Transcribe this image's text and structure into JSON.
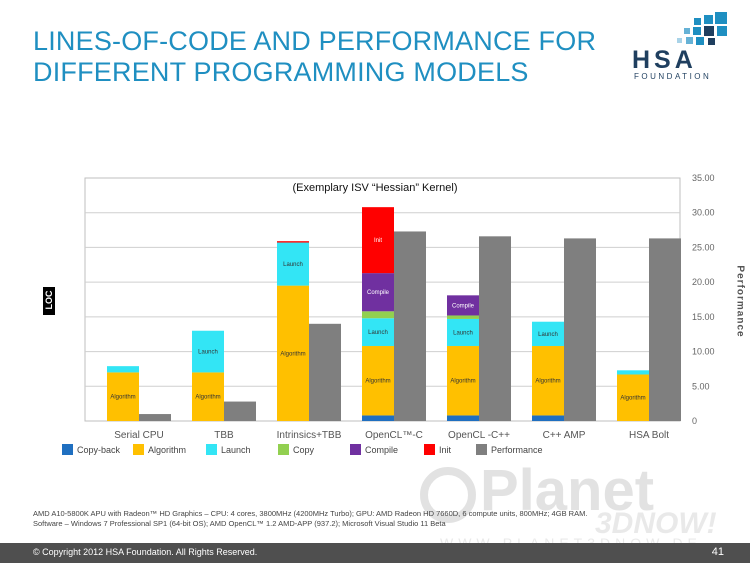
{
  "title": {
    "line1": "LINES-OF-CODE AND PERFORMANCE FOR",
    "line2": "DIFFERENT PROGRAMMING MODELS"
  },
  "logo": {
    "text": "HSA",
    "sub": "FOUNDATION"
  },
  "loc_label": "LOC",
  "performance_label": "Performance",
  "footnote": {
    "line1": "AMD A10-5800K APU with Radeon™ HD Graphics – CPU: 4 cores, 3800MHz (4200MHz Turbo); GPU: AMD Radeon HD 7660D, 6 compute units, 800MHz; 4GB RAM.",
    "line2": "Software – Windows 7 Professional SP1 (64-bit OS); AMD OpenCL™ 1.2 AMD-APP (937.2); Microsoft Visual Studio 11 Beta"
  },
  "footer": {
    "copyright": "© Copyright 2012 HSA Foundation. All Rights Reserved.",
    "page": "41"
  },
  "watermark": {
    "text": "Planet",
    "sub": "3DNOW!",
    "url": "WWW.PLANET3DNOW.DE"
  },
  "colors": {
    "copyback": "#1f6fc0",
    "algorithm": "#ffc000",
    "launch": "#33e5f5",
    "copy": "#92d050",
    "compile": "#7030a0",
    "init": "#ff0000",
    "performance": "#7f7f7f"
  },
  "chart_data": {
    "type": "bar",
    "title": "(Exemplary ISV “Hessian” Kernel)",
    "categories": [
      "Serial CPU",
      "TBB",
      "Intrinsics+TBB",
      "OpenCL™-C",
      "OpenCL -C++",
      "C++ AMP",
      "HSA Bolt"
    ],
    "loc_ylim": [
      0,
      35
    ],
    "perf_ylim": [
      0,
      35
    ],
    "perf_ticks": [
      "35.00",
      "30.00",
      "25.00",
      "20.00",
      "15.00",
      "10.00",
      "5.00",
      "0"
    ],
    "legend": [
      "Copy-back",
      "Algorithm",
      "Launch",
      "Copy",
      "Compile",
      "Init",
      "Performance"
    ],
    "loc_series": [
      {
        "name": "Copy-back",
        "values": [
          0,
          0,
          0,
          0.8,
          0.8,
          0.8,
          0
        ]
      },
      {
        "name": "Algorithm",
        "values": [
          7.0,
          7.0,
          19.5,
          10.0,
          10.0,
          10.0,
          6.7
        ]
      },
      {
        "name": "Launch",
        "values": [
          0.9,
          6.0,
          6.2,
          4.0,
          3.9,
          3.5,
          0.6
        ]
      },
      {
        "name": "Copy",
        "values": [
          0,
          0,
          0,
          1.0,
          0.5,
          0,
          0
        ]
      },
      {
        "name": "Compile",
        "values": [
          0,
          0,
          0,
          5.5,
          2.9,
          0,
          0
        ]
      },
      {
        "name": "Init",
        "values": [
          0,
          0,
          0.2,
          9.5,
          0,
          0,
          0
        ]
      }
    ],
    "performance": [
      1.0,
      2.8,
      14.0,
      27.3,
      26.6,
      26.3,
      26.3
    ],
    "segment_labels": {
      "Copy-back": "Copy-back",
      "Algorithm": "Algorithm",
      "Launch": "Launch",
      "Copy": "Copy",
      "Compile": "Compile",
      "Init": "Init"
    },
    "copyback_short_label": "Copy-bac"
  }
}
